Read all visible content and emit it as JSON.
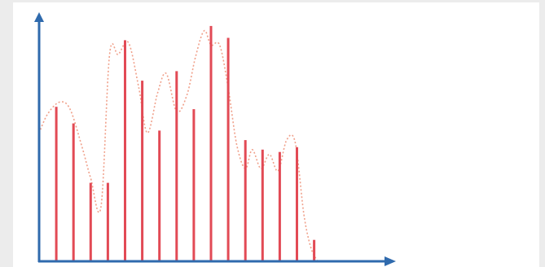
{
  "chart_data": {
    "type": "bar",
    "title": "",
    "xlabel": "",
    "ylabel": "",
    "xlim": [
      0,
      20
    ],
    "ylim": [
      0,
      100
    ],
    "grid": false,
    "bars": {
      "x": [
        1,
        2,
        3,
        4,
        5,
        6,
        7,
        8,
        9,
        10,
        11,
        12,
        13,
        14,
        15,
        16,
        17
      ],
      "values": [
        65,
        58,
        33,
        33,
        93,
        76,
        55,
        80,
        64,
        99,
        94,
        51,
        47,
        46,
        48,
        9,
        0
      ]
    },
    "envelope": {
      "x": [
        0,
        0.5,
        1.2,
        1.8,
        2.5,
        3,
        3.6,
        4.1,
        4.6,
        5.2,
        5.8,
        6.3,
        6.9,
        7.4,
        8,
        8.6,
        9.1,
        9.6,
        10,
        10.5,
        11,
        11.5,
        12,
        12.4,
        12.9,
        13.4,
        13.9,
        14.4,
        14.9,
        15.4,
        15.8,
        16.2
      ],
      "y": [
        54,
        62,
        67,
        64,
        48,
        35,
        23,
        87,
        87,
        92,
        73,
        54,
        71,
        79,
        63,
        70,
        86,
        97,
        91,
        91,
        73,
        49,
        39,
        47,
        39,
        45,
        38,
        51,
        50,
        20,
        6,
        0
      ]
    },
    "colors": {
      "bars": "#e24a55",
      "envelope": "#f0a08a",
      "axes": "#2f6aad"
    }
  }
}
